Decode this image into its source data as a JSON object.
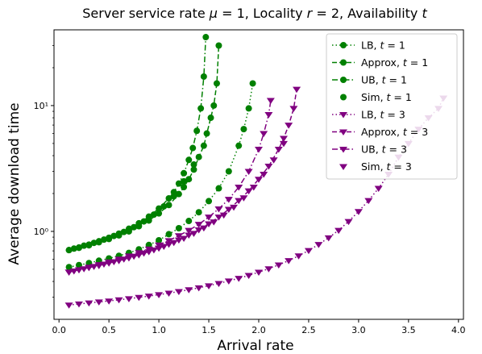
{
  "chart_data": {
    "type": "line",
    "title": "Server service rate μ = 1, Locality r = 2, Availability t",
    "xlabel": "Arrival rate",
    "ylabel": "Average download time",
    "xlim": [
      -0.05,
      4.05
    ],
    "ylim": [
      0.2,
      40
    ],
    "yscale": "log",
    "xticks": [
      0.0,
      0.5,
      1.0,
      1.5,
      2.0,
      2.5,
      3.0,
      3.5,
      4.0
    ],
    "xtick_labels": [
      "0.0",
      "0.5",
      "1.0",
      "1.5",
      "2.0",
      "2.5",
      "3.0",
      "3.5",
      "4.0"
    ],
    "yticks": [
      1,
      10
    ],
    "ytick_labels": [
      "10⁰",
      "10¹"
    ],
    "grid": false,
    "legend_position": "top-right",
    "colors": {
      "t1": "#008000",
      "t3": "#800080"
    },
    "series": [
      {
        "name": "LB, t = 1",
        "color": "#008000",
        "marker": "circle",
        "dash": "dotted",
        "x": [
          0.1,
          0.2,
          0.3,
          0.4,
          0.5,
          0.6,
          0.7,
          0.8,
          0.9,
          1.0,
          1.1,
          1.2,
          1.3,
          1.4,
          1.5,
          1.6,
          1.7,
          1.8,
          1.85,
          1.9,
          1.94
        ],
        "y": [
          0.52,
          0.54,
          0.56,
          0.585,
          0.61,
          0.64,
          0.675,
          0.72,
          0.78,
          0.85,
          0.95,
          1.06,
          1.21,
          1.42,
          1.74,
          2.2,
          3.0,
          4.8,
          6.5,
          9.5,
          15.0
        ]
      },
      {
        "name": "Approx, t = 1",
        "color": "#008000",
        "marker": "circle",
        "dash": "dashed",
        "x": [
          0.1,
          0.2,
          0.3,
          0.4,
          0.5,
          0.6,
          0.7,
          0.8,
          0.9,
          1.0,
          1.1,
          1.2,
          1.25,
          1.3,
          1.35,
          1.4,
          1.45,
          1.48,
          1.52,
          1.55,
          1.58,
          1.6
        ],
        "y": [
          0.71,
          0.74,
          0.775,
          0.82,
          0.87,
          0.93,
          1.0,
          1.1,
          1.22,
          1.39,
          1.62,
          1.98,
          2.25,
          2.6,
          3.1,
          3.9,
          4.8,
          6.0,
          8.0,
          10.0,
          15.0,
          30.0
        ]
      },
      {
        "name": "UB, t = 1",
        "color": "#008000",
        "marker": "circle",
        "dash": "dashdot",
        "x": [
          0.1,
          0.2,
          0.3,
          0.4,
          0.5,
          0.6,
          0.7,
          0.8,
          0.9,
          1.0,
          1.1,
          1.15,
          1.2,
          1.25,
          1.3,
          1.34,
          1.38,
          1.42,
          1.45,
          1.47
        ],
        "y": [
          0.71,
          0.745,
          0.785,
          0.835,
          0.89,
          0.96,
          1.05,
          1.16,
          1.31,
          1.52,
          1.83,
          2.05,
          2.4,
          2.9,
          3.7,
          4.6,
          6.3,
          9.5,
          17.0,
          35.0
        ]
      },
      {
        "name": "Sim, t = 1",
        "color": "#008000",
        "marker": "circle",
        "dash": "none",
        "x": [
          0.15,
          0.25,
          0.35,
          0.45,
          0.55,
          0.65,
          0.75,
          0.85,
          0.95,
          1.05,
          1.15,
          1.25,
          1.35
        ],
        "y": [
          0.73,
          0.77,
          0.81,
          0.86,
          0.92,
          0.99,
          1.08,
          1.2,
          1.36,
          1.58,
          1.9,
          2.5,
          3.4
        ]
      },
      {
        "name": "LB, t = 3",
        "color": "#800080",
        "marker": "triangle-down",
        "dash": "dotted",
        "x": [
          0.1,
          0.2,
          0.3,
          0.4,
          0.5,
          0.6,
          0.7,
          0.8,
          0.9,
          1.0,
          1.1,
          1.2,
          1.3,
          1.4,
          1.5,
          1.6,
          1.7,
          1.8,
          1.9,
          2.0,
          2.1,
          2.2,
          2.3,
          2.4,
          2.5,
          2.6,
          2.7,
          2.8,
          2.9,
          3.0,
          3.1,
          3.2,
          3.3,
          3.4,
          3.5,
          3.6,
          3.7,
          3.8,
          3.85
        ],
        "y": [
          0.26,
          0.265,
          0.27,
          0.275,
          0.28,
          0.286,
          0.292,
          0.299,
          0.306,
          0.314,
          0.323,
          0.333,
          0.344,
          0.356,
          0.37,
          0.386,
          0.404,
          0.424,
          0.447,
          0.474,
          0.505,
          0.542,
          0.586,
          0.64,
          0.705,
          0.787,
          0.89,
          1.02,
          1.2,
          1.44,
          1.76,
          2.2,
          2.85,
          3.9,
          5.0,
          6.5,
          8.0,
          9.5,
          11.5
        ]
      },
      {
        "name": "Approx, t = 3",
        "color": "#800080",
        "marker": "triangle-down",
        "dash": "dashed",
        "x": [
          0.1,
          0.2,
          0.3,
          0.4,
          0.5,
          0.6,
          0.7,
          0.8,
          0.9,
          1.0,
          1.1,
          1.2,
          1.3,
          1.4,
          1.5,
          1.6,
          1.7,
          1.8,
          1.9,
          2.0,
          2.1,
          2.2,
          2.25,
          2.3,
          2.35,
          2.38
        ],
        "y": [
          0.475,
          0.495,
          0.515,
          0.535,
          0.56,
          0.585,
          0.615,
          0.65,
          0.69,
          0.735,
          0.79,
          0.855,
          0.935,
          1.03,
          1.15,
          1.3,
          1.5,
          1.76,
          2.1,
          2.6,
          3.3,
          4.5,
          5.5,
          7.0,
          9.5,
          13.5
        ]
      },
      {
        "name": "UB, t = 3",
        "color": "#800080",
        "marker": "triangle-down",
        "dash": "dashdot",
        "x": [
          0.1,
          0.2,
          0.3,
          0.4,
          0.5,
          0.6,
          0.7,
          0.8,
          0.9,
          1.0,
          1.1,
          1.2,
          1.3,
          1.4,
          1.5,
          1.6,
          1.7,
          1.8,
          1.9,
          2.0,
          2.05,
          2.1,
          2.12
        ],
        "y": [
          0.475,
          0.497,
          0.52,
          0.545,
          0.572,
          0.603,
          0.638,
          0.678,
          0.725,
          0.78,
          0.845,
          0.925,
          1.02,
          1.14,
          1.3,
          1.51,
          1.8,
          2.25,
          3.0,
          4.5,
          6.0,
          8.5,
          11.0
        ]
      },
      {
        "name": "Sim, t = 3",
        "color": "#800080",
        "marker": "triangle-down",
        "dash": "none",
        "x": [
          0.15,
          0.25,
          0.35,
          0.45,
          0.55,
          0.65,
          0.75,
          0.85,
          0.95,
          1.05,
          1.15,
          1.25,
          1.35,
          1.45,
          1.55,
          1.65,
          1.75,
          1.85,
          1.95,
          2.05,
          2.15,
          2.25
        ],
        "y": [
          0.485,
          0.505,
          0.527,
          0.55,
          0.575,
          0.603,
          0.635,
          0.672,
          0.713,
          0.76,
          0.815,
          0.882,
          0.965,
          1.065,
          1.19,
          1.35,
          1.56,
          1.85,
          2.25,
          2.85,
          3.7,
          5.0
        ]
      }
    ],
    "legend": [
      {
        "label": "LB, ",
        "t": "t = 1",
        "series": 0
      },
      {
        "label": "Approx, ",
        "t": "t = 1",
        "series": 1
      },
      {
        "label": "UB, ",
        "t": "t = 1",
        "series": 2
      },
      {
        "label": "Sim, ",
        "t": "t = 1",
        "series": 3
      },
      {
        "label": "LB, ",
        "t": "t = 3",
        "series": 4
      },
      {
        "label": "Approx, ",
        "t": "t = 3",
        "series": 5
      },
      {
        "label": "UB, ",
        "t": "t = 3",
        "series": 6
      },
      {
        "label": "Sim, ",
        "t": "t = 3",
        "series": 7
      }
    ]
  }
}
